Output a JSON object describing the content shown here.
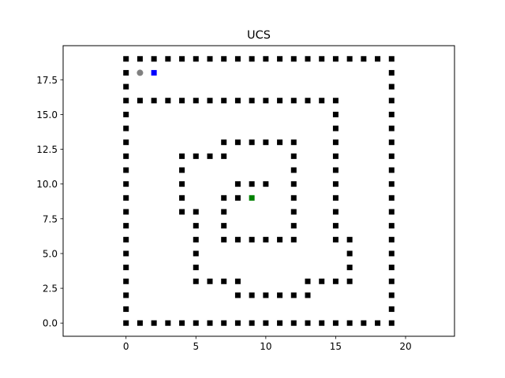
{
  "chart_data": {
    "type": "scatter",
    "title": "UCS",
    "xlabel": "",
    "ylabel": "",
    "xlim": [
      -4.5,
      23.5
    ],
    "ylim": [
      -0.95,
      19.95
    ],
    "grid": false,
    "x_ticks": [
      0,
      5,
      10,
      15,
      20
    ],
    "y_ticks": [
      0.0,
      2.5,
      5.0,
      7.5,
      10.0,
      12.5,
      15.0,
      17.5
    ],
    "x_tick_labels": [
      "0",
      "5",
      "10",
      "15",
      "20"
    ],
    "y_tick_labels": [
      "0.0",
      "2.5",
      "5.0",
      "7.5",
      "10.0",
      "12.5",
      "15.0",
      "17.5"
    ],
    "series": [
      {
        "marker": "square",
        "color": "#000000",
        "points": [
          [
            0,
            19
          ],
          [
            1,
            19
          ],
          [
            2,
            19
          ],
          [
            3,
            19
          ],
          [
            4,
            19
          ],
          [
            5,
            19
          ],
          [
            6,
            19
          ],
          [
            7,
            19
          ],
          [
            8,
            19
          ],
          [
            9,
            19
          ],
          [
            10,
            19
          ],
          [
            11,
            19
          ],
          [
            12,
            19
          ],
          [
            13,
            19
          ],
          [
            14,
            19
          ],
          [
            15,
            19
          ],
          [
            16,
            19
          ],
          [
            17,
            19
          ],
          [
            18,
            19
          ],
          [
            19,
            19
          ],
          [
            0,
            0
          ],
          [
            1,
            0
          ],
          [
            2,
            0
          ],
          [
            3,
            0
          ],
          [
            4,
            0
          ],
          [
            5,
            0
          ],
          [
            6,
            0
          ],
          [
            7,
            0
          ],
          [
            8,
            0
          ],
          [
            9,
            0
          ],
          [
            10,
            0
          ],
          [
            11,
            0
          ],
          [
            12,
            0
          ],
          [
            13,
            0
          ],
          [
            14,
            0
          ],
          [
            15,
            0
          ],
          [
            16,
            0
          ],
          [
            17,
            0
          ],
          [
            18,
            0
          ],
          [
            19,
            0
          ],
          [
            0,
            18
          ],
          [
            0,
            17
          ],
          [
            0,
            16
          ],
          [
            0,
            15
          ],
          [
            0,
            14
          ],
          [
            0,
            13
          ],
          [
            0,
            12
          ],
          [
            0,
            11
          ],
          [
            0,
            10
          ],
          [
            0,
            9
          ],
          [
            0,
            8
          ],
          [
            0,
            7
          ],
          [
            0,
            6
          ],
          [
            0,
            5
          ],
          [
            0,
            4
          ],
          [
            0,
            3
          ],
          [
            0,
            2
          ],
          [
            0,
            1
          ],
          [
            19,
            18
          ],
          [
            19,
            17
          ],
          [
            19,
            16
          ],
          [
            19,
            15
          ],
          [
            19,
            14
          ],
          [
            19,
            13
          ],
          [
            19,
            12
          ],
          [
            19,
            11
          ],
          [
            19,
            10
          ],
          [
            19,
            9
          ],
          [
            19,
            8
          ],
          [
            19,
            7
          ],
          [
            19,
            6
          ],
          [
            19,
            5
          ],
          [
            19,
            4
          ],
          [
            19,
            3
          ],
          [
            19,
            2
          ],
          [
            19,
            1
          ],
          [
            1,
            16
          ],
          [
            2,
            16
          ],
          [
            3,
            16
          ],
          [
            4,
            16
          ],
          [
            5,
            16
          ],
          [
            6,
            16
          ],
          [
            7,
            16
          ],
          [
            8,
            16
          ],
          [
            9,
            16
          ],
          [
            10,
            16
          ],
          [
            11,
            16
          ],
          [
            12,
            16
          ],
          [
            13,
            16
          ],
          [
            14,
            16
          ],
          [
            15,
            16
          ],
          [
            15,
            15
          ],
          [
            15,
            14
          ],
          [
            15,
            13
          ],
          [
            15,
            12
          ],
          [
            15,
            11
          ],
          [
            15,
            10
          ],
          [
            15,
            9
          ],
          [
            15,
            8
          ],
          [
            15,
            7
          ],
          [
            15,
            6
          ],
          [
            16,
            6
          ],
          [
            16,
            5
          ],
          [
            16,
            4
          ],
          [
            16,
            3
          ],
          [
            13,
            3
          ],
          [
            14,
            3
          ],
          [
            15,
            3
          ],
          [
            13,
            2
          ],
          [
            8,
            2
          ],
          [
            9,
            2
          ],
          [
            10,
            2
          ],
          [
            11,
            2
          ],
          [
            12,
            2
          ],
          [
            8,
            3
          ],
          [
            7,
            3
          ],
          [
            6,
            3
          ],
          [
            5,
            3
          ],
          [
            5,
            4
          ],
          [
            5,
            5
          ],
          [
            5,
            6
          ],
          [
            5,
            7
          ],
          [
            5,
            8
          ],
          [
            4,
            8
          ],
          [
            4,
            9
          ],
          [
            4,
            10
          ],
          [
            4,
            11
          ],
          [
            4,
            12
          ],
          [
            5,
            12
          ],
          [
            6,
            12
          ],
          [
            7,
            12
          ],
          [
            7,
            13
          ],
          [
            8,
            13
          ],
          [
            9,
            13
          ],
          [
            10,
            13
          ],
          [
            11,
            13
          ],
          [
            12,
            13
          ],
          [
            12,
            12
          ],
          [
            12,
            11
          ],
          [
            12,
            10
          ],
          [
            12,
            9
          ],
          [
            12,
            8
          ],
          [
            12,
            7
          ],
          [
            12,
            6
          ],
          [
            11,
            6
          ],
          [
            10,
            6
          ],
          [
            9,
            6
          ],
          [
            8,
            6
          ],
          [
            7,
            6
          ],
          [
            7,
            7
          ],
          [
            7,
            8
          ],
          [
            7,
            9
          ],
          [
            8,
            9
          ],
          [
            8,
            10
          ],
          [
            9,
            10
          ],
          [
            10,
            10
          ]
        ]
      },
      {
        "marker": "circle",
        "color": "#808080",
        "points": [
          [
            1,
            18
          ]
        ]
      },
      {
        "marker": "square",
        "color": "#0000ff",
        "points": [
          [
            2,
            18
          ]
        ]
      },
      {
        "marker": "square",
        "color": "#008000",
        "points": [
          [
            9,
            9
          ]
        ]
      }
    ]
  }
}
